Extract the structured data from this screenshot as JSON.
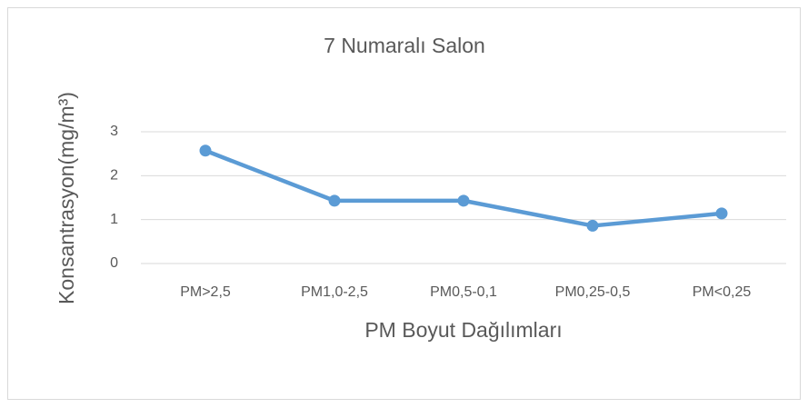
{
  "chart_data": {
    "type": "line",
    "title": "7 Numaralı Salon",
    "x_label": "PM Boyut Dağılımları",
    "y_label": "Konsantrasyon(mg/m³)",
    "categories": [
      "PM>2,5",
      "PM1,0-2,5",
      "PM0,5-0,1",
      "PM0,25-0,5",
      "PM<0,25"
    ],
    "values": [
      2.57,
      1.43,
      1.43,
      0.86,
      1.14
    ],
    "color": "#5b9bd5",
    "ylim": [
      0,
      3
    ],
    "yticks": [
      0,
      1,
      2,
      3
    ],
    "grid": true
  }
}
